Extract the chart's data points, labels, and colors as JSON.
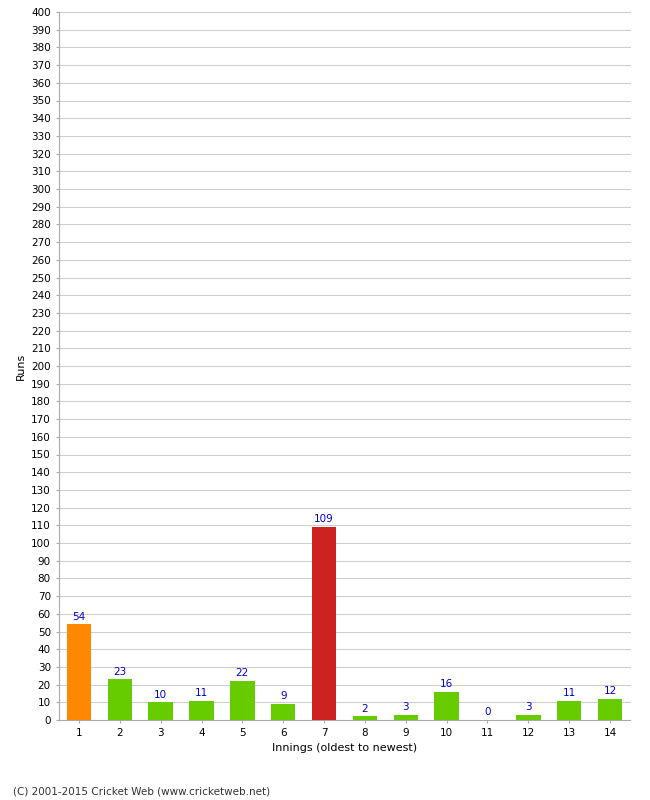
{
  "innings": [
    1,
    2,
    3,
    4,
    5,
    6,
    7,
    8,
    9,
    10,
    11,
    12,
    13,
    14
  ],
  "runs": [
    54,
    23,
    10,
    11,
    22,
    9,
    109,
    2,
    3,
    16,
    0,
    3,
    11,
    12
  ],
  "bar_colors": [
    "#ff8800",
    "#66cc00",
    "#66cc00",
    "#66cc00",
    "#66cc00",
    "#66cc00",
    "#cc2222",
    "#66cc00",
    "#66cc00",
    "#66cc00",
    "#66cc00",
    "#66cc00",
    "#66cc00",
    "#66cc00"
  ],
  "label_color": "#0000cc",
  "xlabel": "Innings (oldest to newest)",
  "ylabel": "Runs",
  "ylim": [
    0,
    400
  ],
  "yticks": [
    0,
    10,
    20,
    30,
    40,
    50,
    60,
    70,
    80,
    90,
    100,
    110,
    120,
    130,
    140,
    150,
    160,
    170,
    180,
    190,
    200,
    210,
    220,
    230,
    240,
    250,
    260,
    270,
    280,
    290,
    300,
    310,
    320,
    330,
    340,
    350,
    360,
    370,
    380,
    390,
    400
  ],
  "background_color": "#ffffff",
  "grid_color": "#cccccc",
  "footer": "(C) 2001-2015 Cricket Web (www.cricketweb.net)",
  "label_fontsize": 7.5,
  "axis_tick_fontsize": 7.5,
  "axis_label_fontsize": 8,
  "footer_fontsize": 7.5
}
